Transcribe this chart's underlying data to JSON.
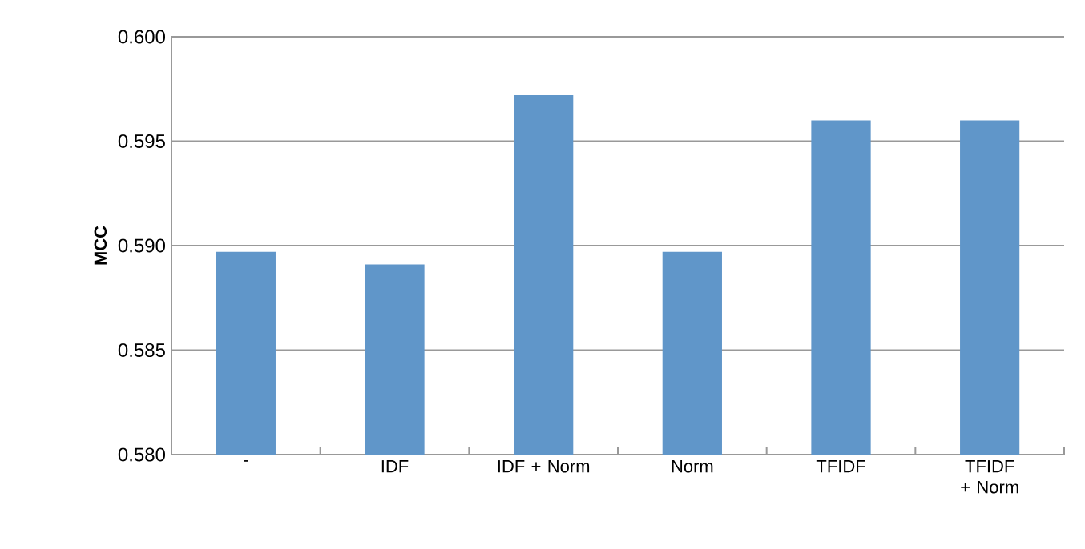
{
  "chart_data": {
    "type": "bar",
    "ylabel": "MCC",
    "categories": [
      "-",
      "IDF",
      "IDF + Norm",
      "Norm",
      "TFIDF",
      "TFIDF + Norm"
    ],
    "values": [
      0.5897,
      0.5891,
      0.5972,
      0.5897,
      0.596,
      0.596
    ],
    "color": "#6096c9",
    "ylim": [
      0.58,
      0.6
    ],
    "yticks": [
      {
        "value": 0.58,
        "label": "0.580"
      },
      {
        "value": 0.585,
        "label": "0.585"
      },
      {
        "value": 0.59,
        "label": "0.590"
      },
      {
        "value": 0.595,
        "label": "0.595"
      },
      {
        "value": 0.6,
        "label": "0.600"
      }
    ],
    "grid": "y"
  }
}
